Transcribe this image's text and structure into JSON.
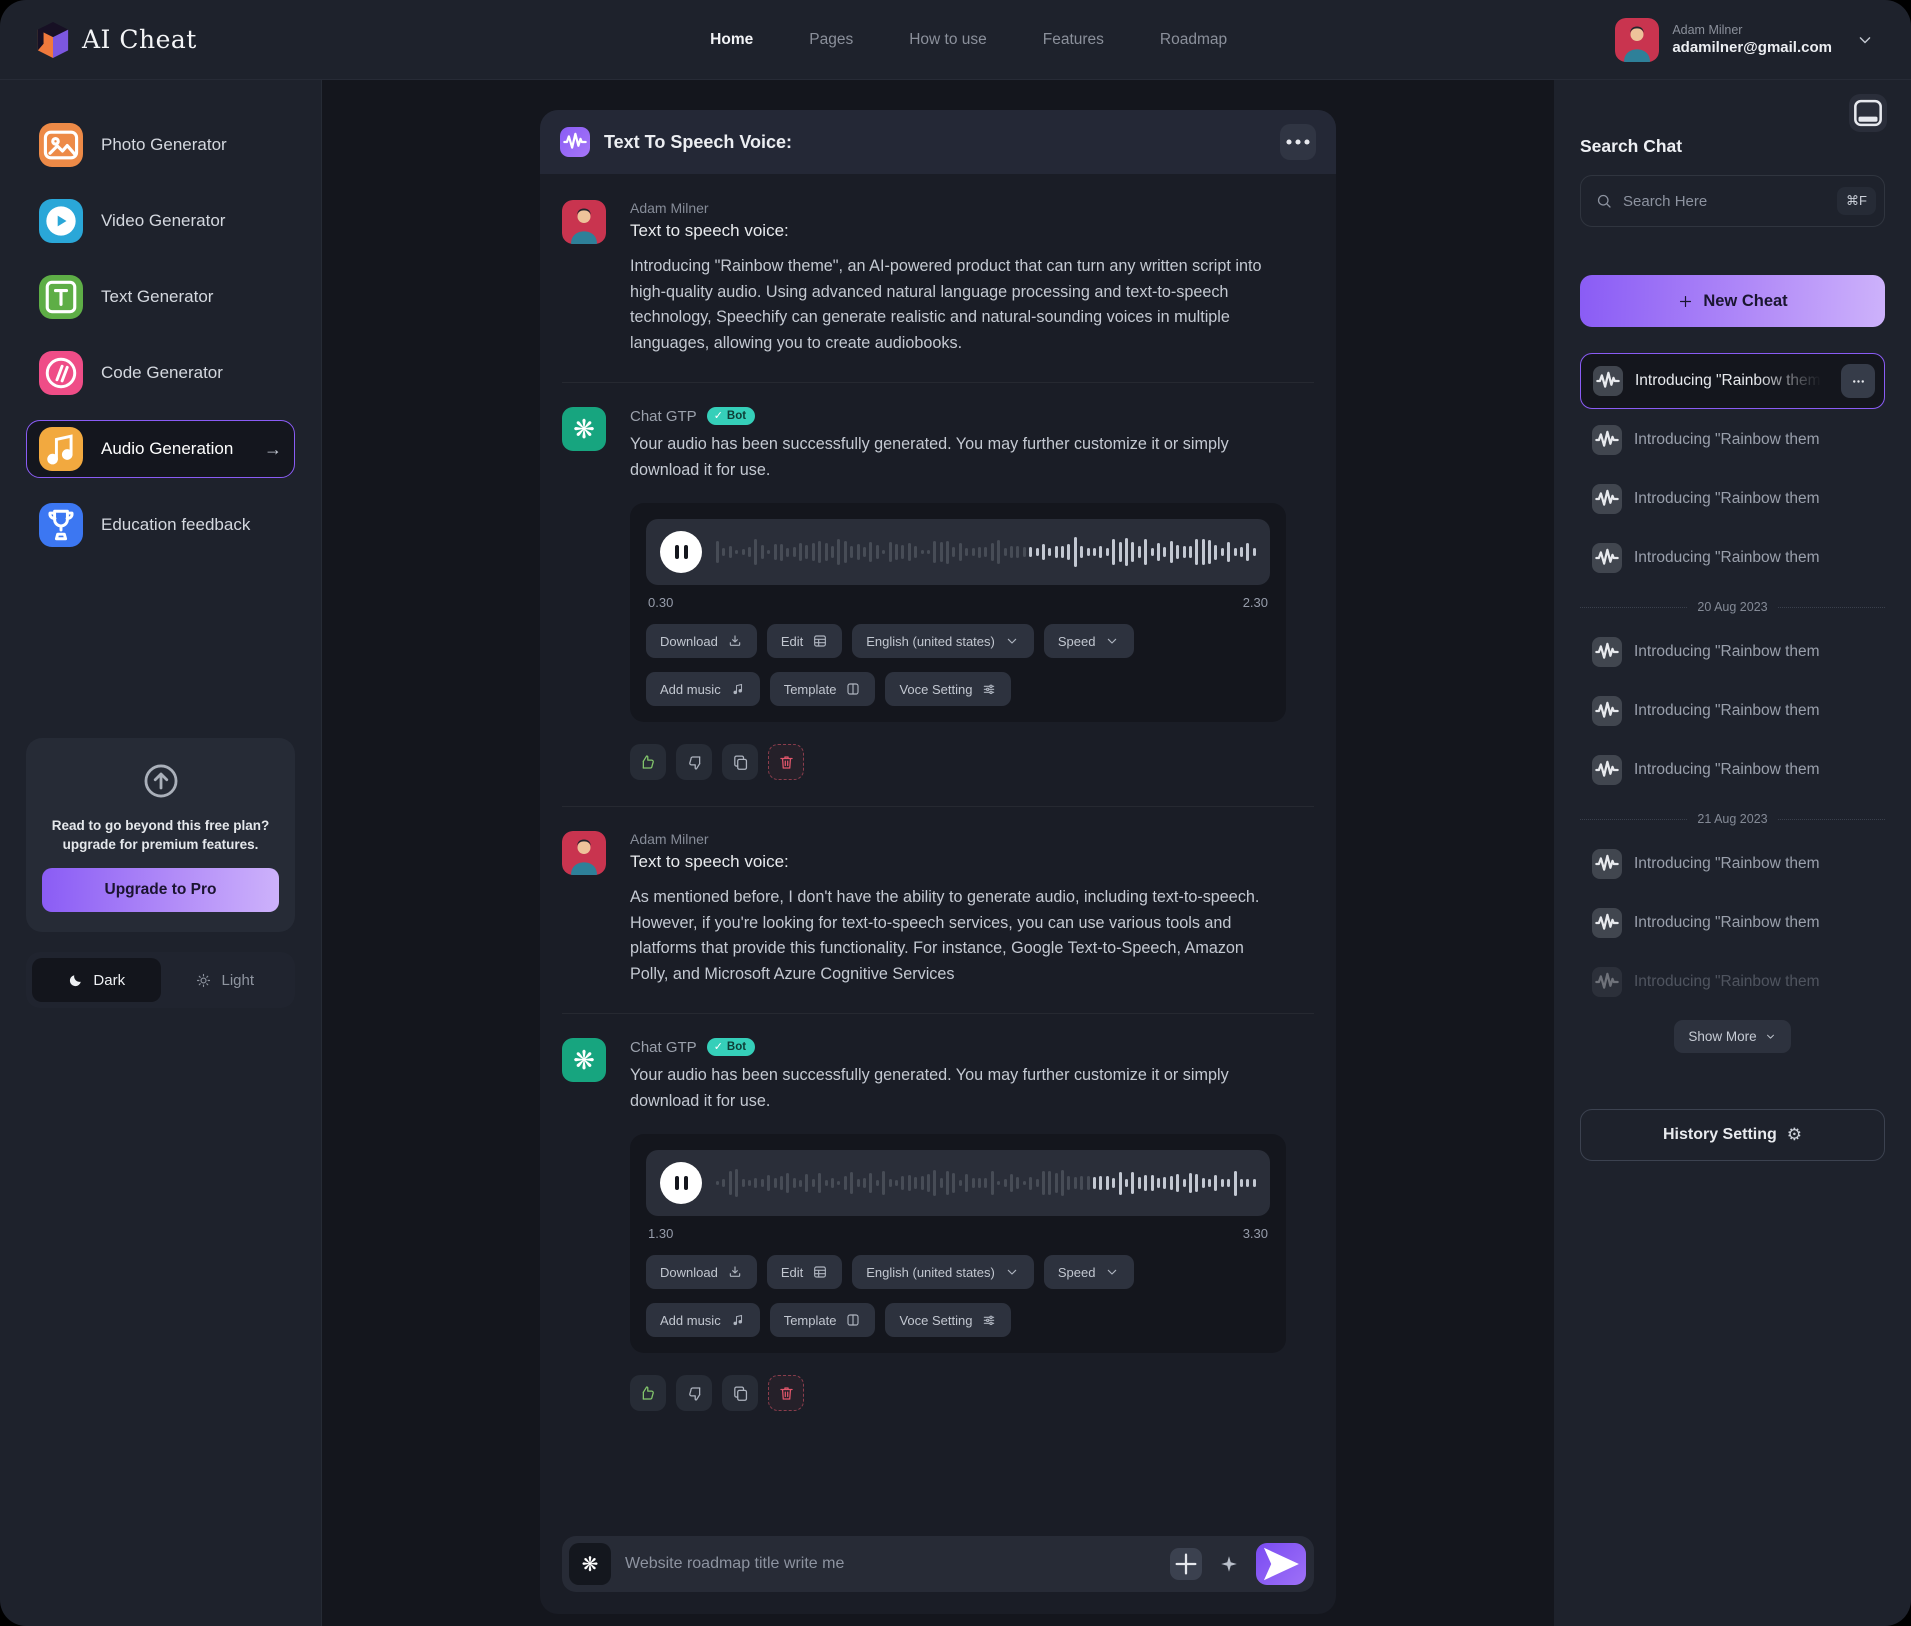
{
  "nav": {
    "logo": "AI Cheat",
    "items": [
      {
        "label": "Home",
        "active": true
      },
      {
        "label": "Pages"
      },
      {
        "label": "How to use"
      },
      {
        "label": "Features"
      },
      {
        "label": "Roadmap"
      }
    ],
    "user": {
      "name": "Adam Milner",
      "email": "adamilner@gmail.com"
    }
  },
  "sidebar": {
    "items": [
      {
        "label": "Photo Generator",
        "icon": "photo-icon",
        "color": "#ED8A47"
      },
      {
        "label": "Video Generator",
        "icon": "video-icon",
        "color": "#2AA7D8"
      },
      {
        "label": "Text Generator",
        "icon": "text-icon",
        "color": "#5EAE46"
      },
      {
        "label": "Code Generator",
        "icon": "code-icon",
        "color": "#EF4D87"
      },
      {
        "label": "Audio Generation",
        "icon": "audio-icon",
        "color": "#F2A93F",
        "active": true
      },
      {
        "label": "Education feedback",
        "icon": "education-icon",
        "color": "#3C77F2"
      }
    ],
    "upgrade": {
      "line1": "Read to go beyond this free plan?",
      "line2": "upgrade for premium features.",
      "button": "Upgrade to Pro"
    },
    "theme": {
      "dark": "Dark",
      "light": "Light"
    }
  },
  "chat": {
    "title": "Text To Speech Voice:",
    "messages": [
      {
        "role": "user",
        "name": "Adam Milner",
        "prompt": "Text to speech voice:",
        "body": "Introducing \"Rainbow theme\", an AI-powered product that can turn any written script into high-quality audio. Using advanced natural language processing and text-to-speech technology, Speechify can generate realistic and natural-sounding voices in multiple languages, allowing you to create audiobooks."
      },
      {
        "role": "bot",
        "name": "Chat GTP",
        "badge": "Bot",
        "body": "Your audio has been successfully generated. You may further customize it or simply download it for use.",
        "audio": {
          "elapsed": "0.30",
          "total": "2.30",
          "progress": 0.55
        }
      },
      {
        "role": "user",
        "name": "Adam Milner",
        "prompt": "Text to speech voice:",
        "body": "As mentioned before, I don't have the ability to generate audio, including text-to-speech. However, if you're looking for text-to-speech services, you can use various tools and platforms that provide this functionality. For instance, Google Text-to-Speech, Amazon Polly, and Microsoft Azure Cognitive Services"
      },
      {
        "role": "bot",
        "name": "Chat GTP",
        "badge": "Bot",
        "body": "Your audio has been successfully generated. You may further customize it or simply download it for use.",
        "audio": {
          "elapsed": "1.30",
          "total": "3.30",
          "progress": 0.66
        }
      }
    ],
    "audio_buttons": {
      "row1": [
        {
          "label": "Download",
          "icon": "download-icon"
        },
        {
          "label": "Edit",
          "icon": "grid-icon"
        },
        {
          "label": "English (united states)",
          "icon": "chevron-down-icon"
        },
        {
          "label": "Speed",
          "icon": "chevron-down-icon"
        }
      ],
      "row2": [
        {
          "label": "Add music",
          "icon": "music-note-icon"
        },
        {
          "label": "Template",
          "icon": "columns-icon"
        },
        {
          "label": "Voce Setting",
          "icon": "sliders-icon"
        }
      ]
    },
    "composer": {
      "placeholder": "Website roadmap title write me"
    }
  },
  "right": {
    "title": "Search Chat",
    "search": {
      "placeholder": "Search Here",
      "shortcut": "⌘F"
    },
    "new_cheat": "New Cheat",
    "sections": [
      {
        "date": null,
        "items": [
          {
            "label": "Introducing \"Rainbow theme\", a",
            "active": true
          },
          {
            "label": "Introducing \"Rainbow them"
          },
          {
            "label": "Introducing \"Rainbow them"
          },
          {
            "label": "Introducing \"Rainbow them"
          }
        ]
      },
      {
        "date": "20 Aug 2023",
        "items": [
          {
            "label": "Introducing \"Rainbow them"
          },
          {
            "label": "Introducing \"Rainbow them"
          },
          {
            "label": "Introducing \"Rainbow them"
          }
        ]
      },
      {
        "date": "21 Aug 2023",
        "items": [
          {
            "label": "Introducing \"Rainbow them"
          },
          {
            "label": "Introducing \"Rainbow them"
          },
          {
            "label": "Introducing \"Rainbow them",
            "faded": true
          }
        ]
      }
    ],
    "show_more": "Show More",
    "history_setting": "History Setting"
  }
}
